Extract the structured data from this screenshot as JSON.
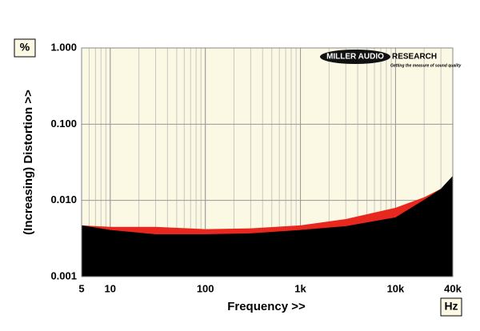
{
  "chart_data": {
    "type": "area",
    "log_x": true,
    "log_y": true,
    "grid": true,
    "minor_x_grid": true,
    "ylabel": "(Increasing) Distortion >>",
    "xlabel": "Frequency >>",
    "y_unit": "%",
    "x_unit": "Hz",
    "x": [
      5,
      10,
      30,
      100,
      300,
      1000,
      3000,
      10000,
      20000,
      30000,
      40000
    ],
    "series": [
      {
        "color": "#e8281e",
        "values": [
          0.0047,
          0.0045,
          0.0045,
          0.0042,
          0.0043,
          0.0047,
          0.0057,
          0.008,
          0.011,
          0.0142,
          0.021
        ]
      },
      {
        "color": "#000000",
        "values": [
          0.0047,
          0.0041,
          0.0036,
          0.0036,
          0.0037,
          0.0041,
          0.0046,
          0.006,
          0.0102,
          0.0142,
          0.021
        ]
      }
    ],
    "xlim": [
      5,
      40000
    ],
    "ylim": [
      0.001,
      1
    ],
    "xticks": [
      5,
      10,
      100,
      {
        "value": 1000,
        "label": "1k"
      },
      {
        "value": 10000,
        "label": "10k"
      },
      {
        "value": 40000,
        "label": "40k"
      }
    ],
    "yticks": [
      {
        "value": 0.001,
        "label": "0.001"
      },
      {
        "value": 0.01,
        "label": "0.010"
      },
      {
        "value": 0.1,
        "label": "0.100"
      },
      {
        "value": 1,
        "label": "1.000"
      }
    ]
  },
  "logo": {
    "name_left": "MILLER AUDIO",
    "name_right": "RESEARCH",
    "tagline": "Getting the measure of sound quality"
  }
}
